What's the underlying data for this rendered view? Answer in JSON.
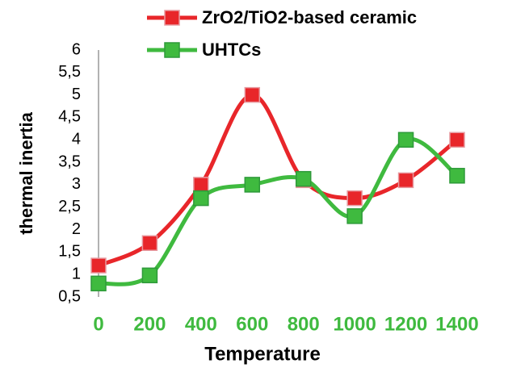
{
  "chart_data": {
    "type": "line",
    "x": [
      0,
      200,
      400,
      600,
      800,
      1000,
      1200,
      1400
    ],
    "xlabel": "Temperature",
    "ylabel": "thermal inertia",
    "xlim": [
      0,
      1400
    ],
    "xticks": [
      0,
      200,
      400,
      600,
      800,
      1000,
      1200,
      1400
    ],
    "ylim": [
      0.5,
      6
    ],
    "yticks": [
      {
        "value": 0.5,
        "label": "0,5"
      },
      1,
      {
        "value": 1.5,
        "label": "1,5"
      },
      2,
      {
        "value": 2.5,
        "label": "2,5"
      },
      3,
      {
        "value": 3.5,
        "label": "3,5"
      },
      4,
      {
        "value": 4.5,
        "label": "4,5"
      },
      5,
      {
        "value": 5.5,
        "label": "5,5"
      },
      6
    ],
    "grid": false,
    "smooth": true,
    "legend": "top",
    "series": [
      {
        "name": "ZrO2/TiO2-based ceramic",
        "color": "#e8262a",
        "values": [
          1.2,
          1.7,
          3.0,
          5.0,
          3.1,
          2.7,
          3.1,
          4.0
        ]
      },
      {
        "name": "UHTCs",
        "color": "#3fba3f",
        "values": [
          0.8,
          0.98,
          2.7,
          3.0,
          3.13,
          2.3,
          4.0,
          3.2
        ]
      }
    ]
  }
}
